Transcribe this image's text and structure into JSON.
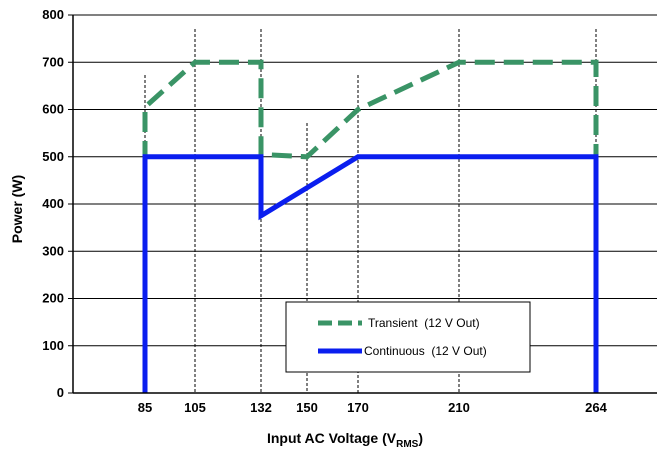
{
  "chart_data": {
    "type": "line",
    "xlabel": {
      "main": "Input AC Voltage (V",
      "sub": "RMS",
      "close": ")"
    },
    "ylabel": "Power (W)",
    "ylim": [
      0,
      800
    ],
    "yticks": [
      "0",
      "100",
      "200",
      "300",
      "400",
      "500",
      "600",
      "700",
      "800"
    ],
    "xticks": [
      "85",
      "105",
      "132",
      "150",
      "170",
      "210",
      "264"
    ],
    "grid": "horizontal lines at each 100 W; vertical dashed lines at each x tick",
    "legend_position": "lower-right",
    "series": [
      {
        "name": "Transient  (12 V Out)",
        "color": "#3a9466",
        "style": "dashed",
        "points": [
          [
            85,
            0
          ],
          [
            85,
            500
          ],
          [
            85,
            605
          ],
          [
            105,
            700
          ],
          [
            132,
            700
          ],
          [
            132,
            505
          ],
          [
            150,
            500
          ],
          [
            170,
            600
          ],
          [
            210,
            700
          ],
          [
            264,
            700
          ],
          [
            264,
            500
          ],
          [
            264,
            0
          ]
        ]
      },
      {
        "name": "Continuous  (12 V Out)",
        "color": "#0a1eef",
        "style": "solid",
        "points": [
          [
            85,
            0
          ],
          [
            85,
            500
          ],
          [
            132,
            500
          ],
          [
            132,
            375
          ],
          [
            170,
            500
          ],
          [
            264,
            500
          ],
          [
            264,
            0
          ]
        ]
      }
    ]
  }
}
